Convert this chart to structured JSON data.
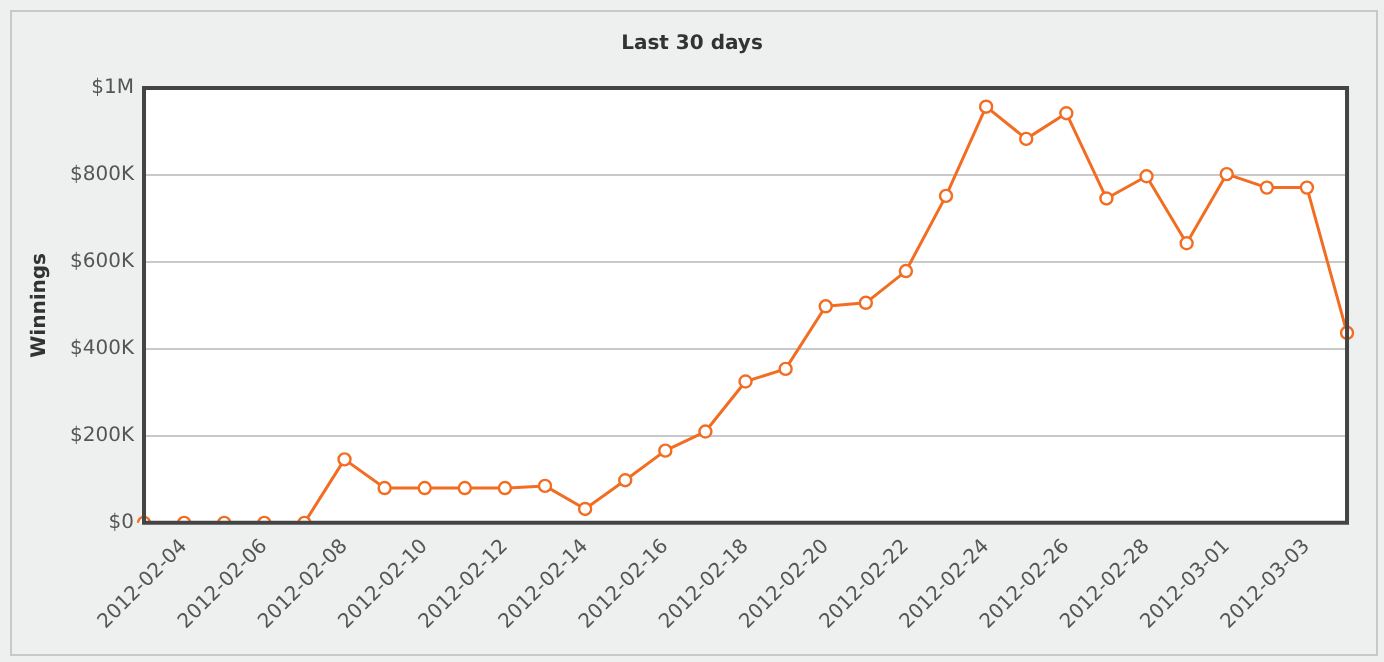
{
  "chart_data": {
    "type": "line",
    "title": "Last 30 days",
    "ylabel": "Winnings",
    "categories": [
      null,
      "2012-02-04",
      null,
      "2012-02-06",
      null,
      "2012-02-08",
      null,
      "2012-02-10",
      null,
      "2012-02-12",
      null,
      "2012-02-14",
      null,
      "2012-02-16",
      null,
      "2012-02-18",
      null,
      "2012-02-20",
      null,
      "2012-02-22",
      null,
      "2012-02-24",
      null,
      "2012-02-26",
      null,
      "2012-02-28",
      null,
      "2012-03-01",
      null,
      "2012-03-03",
      null
    ],
    "series": [
      {
        "color": "#f26d21",
        "values": [
          0,
          0,
          0,
          0,
          0,
          146000,
          80000,
          80000,
          80000,
          80000,
          85000,
          32000,
          98000,
          166000,
          210000,
          325000,
          354000,
          498000,
          506000,
          579000,
          752000,
          957000,
          883000,
          942000,
          746000,
          797000,
          643000,
          802000,
          771000,
          771000,
          437000
        ]
      }
    ],
    "ylim": [
      0,
      1000000
    ],
    "yticks": [
      {
        "value": 0,
        "label": "$0"
      },
      {
        "value": 200000,
        "label": "$200K"
      },
      {
        "value": 400000,
        "label": "$400K"
      },
      {
        "value": 600000,
        "label": "$600K"
      },
      {
        "value": 800000,
        "label": "$800K"
      },
      {
        "value": 1000000,
        "label": "$1M"
      }
    ],
    "grid": "y",
    "legend": false,
    "marker": "circle",
    "line_style": "solid"
  }
}
